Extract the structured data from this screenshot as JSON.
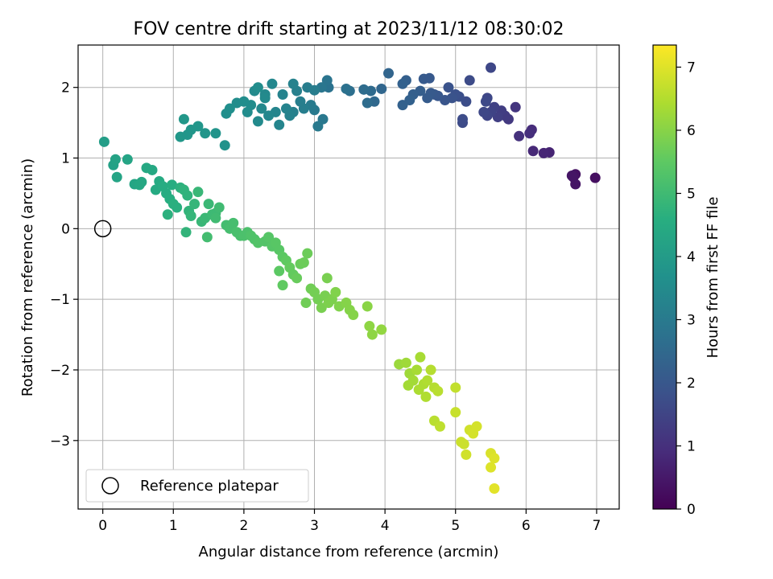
{
  "chart_data": {
    "type": "scatter",
    "title": "FOV centre drift starting at 2023/11/12 08:30:02",
    "xlabel": "Angular distance from reference (arcmin)",
    "ylabel": "Rotation from reference (arcmin)",
    "xlim": [
      -0.35,
      7.32
    ],
    "ylim": [
      -3.97,
      2.6
    ],
    "x_ticks": [
      0,
      1,
      2,
      3,
      4,
      5,
      6,
      7
    ],
    "y_ticks": [
      -3,
      -2,
      -1,
      0,
      1,
      2
    ],
    "grid": true,
    "colormap": "viridis",
    "colorbar": {
      "label": "Hours from first FF file",
      "range": [
        0,
        7.35
      ],
      "ticks": [
        0,
        1,
        2,
        3,
        4,
        5,
        6,
        7
      ]
    },
    "legend": {
      "placement": "lower-left",
      "entries": [
        "Reference platepar"
      ]
    },
    "reference_point": {
      "x": 0,
      "y": 0
    },
    "points": [
      [
        6.98,
        0.72,
        0.3
      ],
      [
        6.7,
        0.77,
        0.35
      ],
      [
        6.67,
        0.73,
        0.38
      ],
      [
        6.7,
        0.63,
        0.4
      ],
      [
        6.65,
        0.75,
        0.42
      ],
      [
        6.33,
        1.08,
        0.75
      ],
      [
        6.25,
        1.07,
        0.8
      ],
      [
        6.1,
        1.1,
        0.85
      ],
      [
        6.08,
        1.4,
        0.95
      ],
      [
        6.05,
        1.35,
        1.0
      ],
      [
        5.9,
        1.31,
        1.05
      ],
      [
        5.85,
        1.72,
        1.15
      ],
      [
        5.75,
        1.55,
        1.25
      ],
      [
        5.7,
        1.6,
        1.3
      ],
      [
        5.65,
        1.67,
        1.35
      ],
      [
        5.6,
        1.58,
        1.4
      ],
      [
        5.55,
        1.72,
        1.45
      ],
      [
        5.5,
        1.65,
        1.5
      ],
      [
        5.45,
        1.6,
        1.55
      ],
      [
        5.4,
        1.65,
        1.6
      ],
      [
        5.45,
        1.85,
        1.6
      ],
      [
        5.43,
        1.8,
        1.65
      ],
      [
        5.5,
        2.28,
        1.6
      ],
      [
        5.1,
        1.5,
        1.7
      ],
      [
        5.1,
        1.55,
        1.72
      ],
      [
        5.15,
        1.8,
        1.75
      ],
      [
        5.2,
        2.1,
        1.7
      ],
      [
        5.05,
        1.87,
        1.8
      ],
      [
        5.0,
        1.9,
        1.85
      ],
      [
        4.95,
        1.85,
        1.9
      ],
      [
        4.9,
        2.0,
        1.9
      ],
      [
        4.85,
        1.82,
        1.95
      ],
      [
        4.75,
        1.88,
        2.0
      ],
      [
        4.7,
        1.9,
        2.05
      ],
      [
        4.65,
        1.92,
        2.1
      ],
      [
        4.6,
        1.85,
        2.12
      ],
      [
        4.55,
        2.12,
        2.1
      ],
      [
        4.63,
        2.13,
        2.08
      ],
      [
        4.5,
        1.95,
        2.2
      ],
      [
        4.4,
        1.9,
        2.25
      ],
      [
        4.35,
        1.82,
        2.3
      ],
      [
        4.25,
        1.75,
        2.3
      ],
      [
        4.3,
        2.1,
        2.25
      ],
      [
        4.25,
        2.05,
        2.3
      ],
      [
        4.05,
        2.2,
        2.4
      ],
      [
        3.95,
        1.98,
        2.45
      ],
      [
        3.85,
        1.8,
        2.5
      ],
      [
        3.8,
        1.95,
        2.55
      ],
      [
        3.75,
        1.78,
        2.6
      ],
      [
        3.7,
        1.97,
        2.6
      ],
      [
        3.5,
        1.95,
        2.7
      ],
      [
        3.45,
        1.98,
        2.75
      ],
      [
        3.2,
        2.0,
        2.8
      ],
      [
        3.18,
        2.1,
        2.85
      ],
      [
        3.1,
        2.0,
        2.9
      ],
      [
        3.12,
        1.55,
        2.95
      ],
      [
        3.05,
        1.45,
        3.0
      ],
      [
        3.0,
        1.68,
        3.0
      ],
      [
        2.95,
        1.75,
        3.05
      ],
      [
        3.0,
        1.96,
        3.1
      ],
      [
        2.9,
        2.0,
        3.1
      ],
      [
        2.85,
        1.7,
        3.15
      ],
      [
        2.8,
        1.8,
        3.15
      ],
      [
        2.75,
        1.95,
        3.2
      ],
      [
        2.7,
        1.65,
        3.2
      ],
      [
        2.7,
        2.05,
        3.25
      ],
      [
        2.65,
        1.6,
        3.25
      ],
      [
        2.6,
        1.7,
        3.3
      ],
      [
        2.55,
        1.9,
        3.3
      ],
      [
        2.5,
        1.47,
        3.35
      ],
      [
        2.45,
        1.65,
        3.35
      ],
      [
        2.4,
        2.05,
        3.4
      ],
      [
        2.35,
        1.6,
        3.4
      ],
      [
        2.3,
        1.9,
        3.45
      ],
      [
        2.25,
        1.7,
        3.45
      ],
      [
        2.2,
        1.52,
        3.5
      ],
      [
        2.15,
        1.95,
        3.5
      ],
      [
        2.1,
        1.75,
        3.55
      ],
      [
        2.05,
        1.65,
        3.55
      ],
      [
        2.0,
        1.8,
        3.6
      ],
      [
        1.9,
        1.78,
        3.6
      ],
      [
        1.8,
        1.7,
        3.65
      ],
      [
        1.75,
        1.63,
        3.65
      ],
      [
        2.2,
        2.0,
        3.6
      ],
      [
        2.3,
        1.85,
        3.5
      ],
      [
        1.73,
        1.18,
        3.75
      ],
      [
        1.6,
        1.35,
        3.8
      ],
      [
        1.45,
        1.35,
        3.82
      ],
      [
        1.35,
        1.45,
        3.85
      ],
      [
        1.25,
        1.4,
        3.85
      ],
      [
        1.15,
        1.55,
        3.9
      ],
      [
        1.1,
        1.3,
        3.9
      ],
      [
        1.2,
        1.33,
        3.88
      ],
      [
        0.02,
        1.23,
        4.1
      ],
      [
        0.15,
        0.9,
        4.2
      ],
      [
        0.18,
        0.98,
        4.25
      ],
      [
        0.2,
        0.73,
        4.3
      ],
      [
        0.35,
        0.98,
        4.3
      ],
      [
        0.45,
        0.63,
        4.35
      ],
      [
        0.52,
        0.62,
        4.4
      ],
      [
        0.55,
        0.66,
        4.4
      ],
      [
        0.62,
        0.86,
        4.45
      ],
      [
        0.7,
        0.83,
        4.45
      ],
      [
        0.75,
        0.55,
        4.5
      ],
      [
        0.8,
        0.67,
        4.5
      ],
      [
        0.85,
        0.6,
        4.55
      ],
      [
        0.9,
        0.5,
        4.55
      ],
      [
        0.95,
        0.42,
        4.6
      ],
      [
        0.98,
        0.62,
        4.6
      ],
      [
        1.0,
        0.35,
        4.65
      ],
      [
        1.05,
        0.3,
        4.65
      ],
      [
        0.92,
        0.2,
        4.7
      ],
      [
        1.1,
        0.58,
        4.7
      ],
      [
        1.15,
        0.55,
        4.75
      ],
      [
        1.2,
        0.47,
        4.75
      ],
      [
        1.22,
        0.25,
        4.8
      ],
      [
        1.18,
        -0.05,
        4.8
      ],
      [
        1.25,
        0.18,
        4.85
      ],
      [
        1.3,
        0.35,
        4.85
      ],
      [
        1.35,
        0.52,
        4.9
      ],
      [
        1.4,
        0.1,
        4.9
      ],
      [
        1.45,
        0.15,
        4.95
      ],
      [
        1.5,
        0.35,
        4.95
      ],
      [
        1.55,
        0.2,
        5.0
      ],
      [
        1.6,
        0.22,
        5.0
      ],
      [
        1.6,
        0.15,
        5.05
      ],
      [
        1.65,
        0.3,
        5.05
      ],
      [
        1.48,
        -0.12,
        5.1
      ],
      [
        1.75,
        0.05,
        5.1
      ],
      [
        1.8,
        0.0,
        5.15
      ],
      [
        1.85,
        0.08,
        5.15
      ],
      [
        1.9,
        -0.05,
        5.2
      ],
      [
        1.95,
        -0.1,
        5.2
      ],
      [
        2.0,
        -0.1,
        5.25
      ],
      [
        2.05,
        -0.05,
        5.25
      ],
      [
        2.1,
        -0.1,
        5.3
      ],
      [
        2.15,
        -0.15,
        5.3
      ],
      [
        2.2,
        -0.2,
        5.35
      ],
      [
        2.3,
        -0.18,
        5.35
      ],
      [
        2.35,
        -0.12,
        5.4
      ],
      [
        2.4,
        -0.25,
        5.4
      ],
      [
        2.45,
        -0.2,
        5.45
      ],
      [
        2.5,
        -0.3,
        5.45
      ],
      [
        2.55,
        -0.4,
        5.5
      ],
      [
        2.5,
        -0.6,
        5.5
      ],
      [
        2.55,
        -0.8,
        5.55
      ],
      [
        2.6,
        -0.45,
        5.55
      ],
      [
        2.65,
        -0.55,
        5.6
      ],
      [
        2.7,
        -0.65,
        5.6
      ],
      [
        2.75,
        -0.7,
        5.65
      ],
      [
        2.8,
        -0.5,
        5.65
      ],
      [
        2.85,
        -0.48,
        5.7
      ],
      [
        2.9,
        -0.35,
        5.7
      ],
      [
        2.95,
        -0.85,
        5.75
      ],
      [
        2.88,
        -1.05,
        5.75
      ],
      [
        3.0,
        -0.9,
        5.8
      ],
      [
        3.05,
        -1.0,
        5.8
      ],
      [
        3.1,
        -1.12,
        5.85
      ],
      [
        3.15,
        -0.95,
        5.85
      ],
      [
        3.18,
        -0.7,
        5.85
      ],
      [
        3.2,
        -1.05,
        5.9
      ],
      [
        3.25,
        -1.0,
        5.9
      ],
      [
        3.3,
        -0.9,
        5.95
      ],
      [
        3.35,
        -1.1,
        5.95
      ],
      [
        3.45,
        -1.05,
        6.0
      ],
      [
        3.5,
        -1.15,
        6.0
      ],
      [
        3.55,
        -1.22,
        6.0
      ],
      [
        3.75,
        -1.1,
        6.05
      ],
      [
        3.78,
        -1.38,
        6.1
      ],
      [
        3.82,
        -1.5,
        6.1
      ],
      [
        3.95,
        -1.43,
        6.15
      ],
      [
        4.2,
        -1.92,
        6.25
      ],
      [
        4.3,
        -1.9,
        6.3
      ],
      [
        4.35,
        -2.05,
        6.3
      ],
      [
        4.4,
        -2.15,
        6.35
      ],
      [
        4.33,
        -2.22,
        6.35
      ],
      [
        4.45,
        -2.0,
        6.4
      ],
      [
        4.5,
        -1.82,
        6.4
      ],
      [
        4.55,
        -2.2,
        6.45
      ],
      [
        4.48,
        -2.28,
        6.45
      ],
      [
        4.6,
        -2.15,
        6.5
      ],
      [
        4.58,
        -2.38,
        6.5
      ],
      [
        4.65,
        -2.0,
        6.55
      ],
      [
        4.7,
        -2.25,
        6.55
      ],
      [
        4.75,
        -2.3,
        6.6
      ],
      [
        4.7,
        -2.72,
        6.6
      ],
      [
        4.78,
        -2.8,
        6.65
      ],
      [
        5.0,
        -2.25,
        6.7
      ],
      [
        5.0,
        -2.6,
        6.75
      ],
      [
        5.08,
        -3.02,
        6.8
      ],
      [
        5.12,
        -3.05,
        6.8
      ],
      [
        5.15,
        -3.2,
        6.85
      ],
      [
        5.2,
        -2.85,
        6.85
      ],
      [
        5.25,
        -2.9,
        6.9
      ],
      [
        5.3,
        -2.8,
        6.9
      ],
      [
        5.5,
        -3.18,
        6.95
      ],
      [
        5.55,
        -3.25,
        7.0
      ],
      [
        5.5,
        -3.38,
        7.0
      ],
      [
        5.55,
        -3.68,
        7.05
      ]
    ]
  }
}
